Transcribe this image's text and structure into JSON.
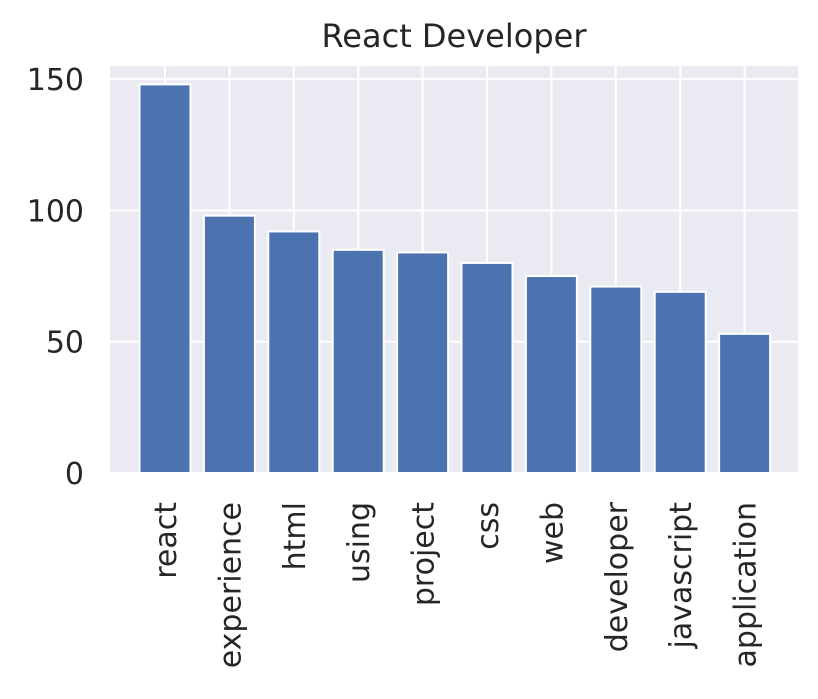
{
  "chart_data": {
    "type": "bar",
    "title": "React Developer",
    "xlabel": "",
    "ylabel": "",
    "categories": [
      "react",
      "experience",
      "html",
      "using",
      "project",
      "css",
      "web",
      "developer",
      "javascript",
      "application"
    ],
    "values": [
      148,
      98,
      92,
      85,
      84,
      80,
      75,
      71,
      69,
      53
    ],
    "ylim": [
      0,
      155
    ],
    "yticks": [
      0,
      50,
      100,
      150
    ],
    "grid": true,
    "colors": {
      "bar": "#4c72b0",
      "bar_edge": "#ffffff",
      "plot_background": "#eaeaf2",
      "grid": "#ffffff",
      "text": "#262626"
    }
  }
}
